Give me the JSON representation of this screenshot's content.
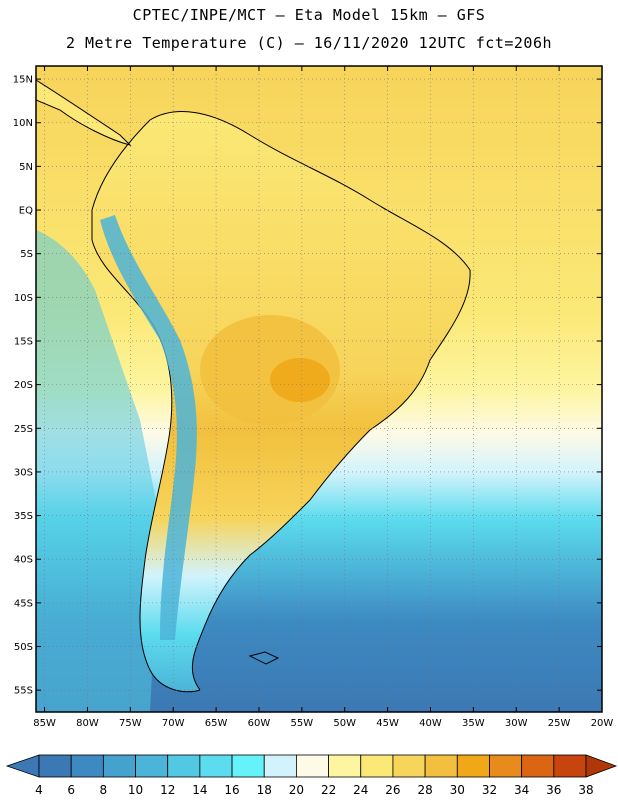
{
  "header": {
    "line1": "CPTEC/INPE/MCT –  Eta Model 15km – GFS",
    "line2": "2 Metre Temperature (C) – 16/11/2020 12UTC fct=206h"
  },
  "map": {
    "lat_labels": [
      "15N",
      "10N",
      "5N",
      "EQ",
      "5S",
      "10S",
      "15S",
      "20S",
      "25S",
      "30S",
      "35S",
      "40S",
      "45S",
      "50S",
      "55S"
    ],
    "lat_values": [
      15,
      10,
      5,
      0,
      -5,
      -10,
      -15,
      -20,
      -25,
      -30,
      -35,
      -40,
      -45,
      -50,
      -55
    ],
    "lon_labels": [
      "85W",
      "80W",
      "75W",
      "70W",
      "65W",
      "60W",
      "55W",
      "50W",
      "45W",
      "40W",
      "35W",
      "30W",
      "25W",
      "20W"
    ],
    "lon_values": [
      -85,
      -80,
      -75,
      -70,
      -65,
      -60,
      -55,
      -50,
      -45,
      -40,
      -35,
      -30,
      -25,
      -20
    ],
    "lon_range": [
      -86,
      -20
    ],
    "lat_range": [
      -57.5,
      16.5
    ]
  },
  "colorbar": {
    "labels": [
      "4",
      "6",
      "8",
      "10",
      "12",
      "14",
      "16",
      "18",
      "20",
      "22",
      "24",
      "26",
      "28",
      "30",
      "32",
      "34",
      "36",
      "38"
    ],
    "colors": [
      "#3c78b4",
      "#3d8ac2",
      "#45a2cf",
      "#4cb4d8",
      "#52c8e2",
      "#5cdcee",
      "#66f2fa",
      "#d2f3fc",
      "#fefae8",
      "#fdf5a0",
      "#fbe876",
      "#f7d45a",
      "#f2c03e",
      "#f0a818",
      "#e88a1c",
      "#da6614",
      "#c8440e",
      "#b03808"
    ]
  }
}
